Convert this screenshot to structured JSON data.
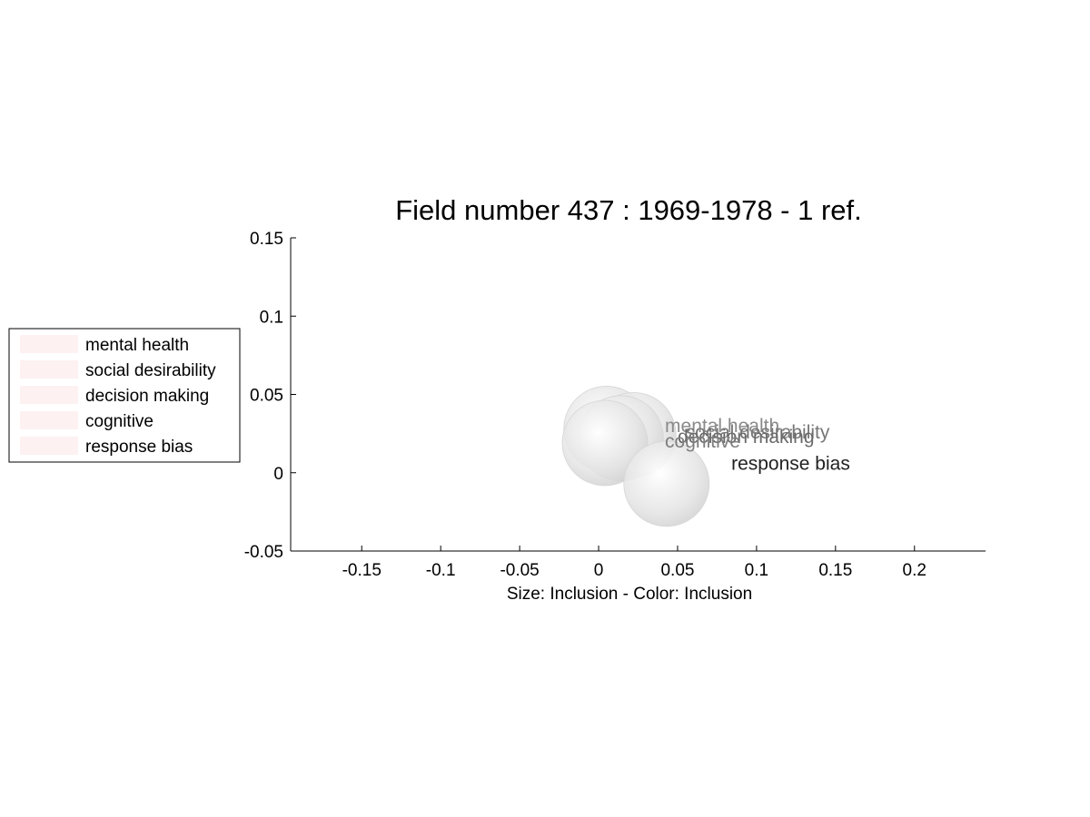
{
  "chart_data": {
    "type": "scatter",
    "title": "Field number 437 : 1969-1978  - 1 ref.",
    "xlabel": "Size: Inclusion - Color: Inclusion",
    "ylabel": "",
    "xlim": [
      -0.195,
      0.245
    ],
    "ylim": [
      -0.05,
      0.15
    ],
    "xticks": [
      "-0.15",
      "-0.1",
      "-0.05",
      "0",
      "0.05",
      "0.1",
      "0.15",
      "0.2"
    ],
    "xtick_values": [
      -0.15,
      -0.1,
      -0.05,
      0,
      0.05,
      0.1,
      0.15,
      0.2
    ],
    "yticks": [
      "-0.05",
      "0",
      "0.05",
      "0.1",
      "0.15"
    ],
    "ytick_values": [
      -0.05,
      0,
      0.05,
      0.1,
      0.15
    ],
    "grid": false,
    "legend_position": "left",
    "legend": [
      "mental health",
      "social desirability",
      "decision making",
      "cognitive",
      "response bias"
    ],
    "legend_swatch_color": "#fdf1f1",
    "points": [
      {
        "label": "mental health",
        "x": 0.005,
        "y": 0.028,
        "label_x": 0.042,
        "label_y": 0.026,
        "color": "#8a8a8a"
      },
      {
        "label": "social desirability",
        "x": 0.022,
        "y": 0.024,
        "label_x": 0.055,
        "label_y": 0.022,
        "color": "#777777"
      },
      {
        "label": "decision making",
        "x": 0.014,
        "y": 0.022,
        "label_x": 0.05,
        "label_y": 0.019,
        "color": "#6a6a6a"
      },
      {
        "label": "cognitive",
        "x": 0.004,
        "y": 0.019,
        "label_x": 0.042,
        "label_y": 0.016,
        "color": "#7e7e7e"
      },
      {
        "label": "response bias",
        "x": 0.043,
        "y": -0.007,
        "label_x": 0.084,
        "label_y": 0.002,
        "color": "#222222"
      }
    ]
  }
}
